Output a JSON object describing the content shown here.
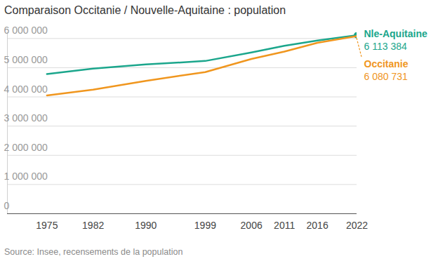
{
  "chart_data": {
    "type": "line",
    "title": "Comparaison Occitanie / Nouvelle-Aquitaine : population",
    "caption": "Source: Insee, recensements de la population",
    "x": [
      1975,
      1982,
      1990,
      1999,
      2006,
      2011,
      2016,
      2022
    ],
    "xlim": [
      1969,
      2022
    ],
    "xticks": [
      1975,
      1982,
      1990,
      1999,
      2006,
      2011,
      2016,
      2022
    ],
    "ylim": [
      0,
      6200000
    ],
    "yticks": [
      {
        "value": 0,
        "label": "0"
      },
      {
        "value": 1000000,
        "label": "1 000 000"
      },
      {
        "value": 2000000,
        "label": "2 000 000"
      },
      {
        "value": 3000000,
        "label": "3 000 000"
      },
      {
        "value": 4000000,
        "label": "4 000 000"
      },
      {
        "value": 5000000,
        "label": "5 000 000"
      },
      {
        "value": 6000000,
        "label": "6 000 000"
      }
    ],
    "grid": true,
    "data_labels": true,
    "series": [
      {
        "name": "Nle-Aquitaine",
        "color": "#1ba68c",
        "marker": "dot",
        "values": [
          4780000,
          4970000,
          5110000,
          5230000,
          5520000,
          5750000,
          5930000,
          6113384
        ],
        "value_labels": [
          null,
          null,
          null,
          null,
          null,
          null,
          null,
          "6 113 384"
        ]
      },
      {
        "name": "Occitanie",
        "color": "#f0961e",
        "values": [
          4050000,
          4250000,
          4550000,
          4850000,
          5300000,
          5550000,
          5850000,
          6080731
        ],
        "value_labels": [
          null,
          null,
          null,
          null,
          null,
          null,
          null,
          "6 080 731"
        ]
      }
    ]
  }
}
